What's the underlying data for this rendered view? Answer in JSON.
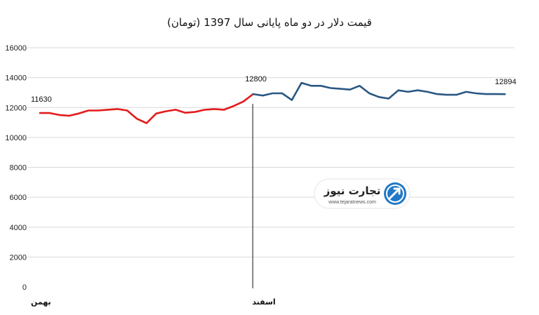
{
  "chart_data": {
    "type": "line",
    "title": "قیمت دلار در دو ماه پایانی سال 1397 (تومان)",
    "xlabel": "",
    "ylabel": "",
    "ylim": [
      0,
      16000
    ],
    "yticks": [
      "0",
      "2000",
      "4000",
      "6000",
      "8000",
      "10000",
      "12000",
      "14000",
      "16000"
    ],
    "grid": true,
    "legend": "none",
    "month_labels": [
      "بهمن",
      "اسفند"
    ],
    "month_start_index": [
      0,
      22
    ],
    "series": [
      {
        "color": "#e31a1c",
        "x": [
          0,
          1,
          2,
          3,
          4,
          5,
          6,
          7,
          8,
          9,
          10,
          11,
          12,
          13,
          14,
          15,
          16,
          17,
          18,
          19,
          20,
          21,
          22
        ],
        "values": [
          11630,
          11630,
          11500,
          11450,
          11600,
          11800,
          11800,
          11850,
          11900,
          11800,
          11250,
          10950,
          11600,
          11750,
          11850,
          11650,
          11700,
          11850,
          11900,
          11850,
          12100,
          12400,
          12900
        ]
      },
      {
        "color": "#2a5783",
        "x": [
          22,
          23,
          24,
          25,
          26,
          27,
          28,
          29,
          30,
          31,
          32,
          33,
          34,
          35,
          36,
          37,
          38,
          39,
          40,
          41,
          42,
          43,
          44,
          45,
          46,
          47,
          48
        ],
        "values": [
          12900,
          12800,
          12950,
          12950,
          12500,
          13650,
          13450,
          13450,
          13300,
          13250,
          13200,
          13450,
          12950,
          12700,
          12600,
          13150,
          13050,
          13150,
          13050,
          12900,
          12850,
          12850,
          13050,
          12950,
          12900,
          12900,
          12894
        ]
      }
    ],
    "annotations": [
      "11630",
      "12800",
      "12894"
    ],
    "watermark": {
      "brand": "تجارت نیوز",
      "url": "www.tejaratnews.com"
    }
  }
}
